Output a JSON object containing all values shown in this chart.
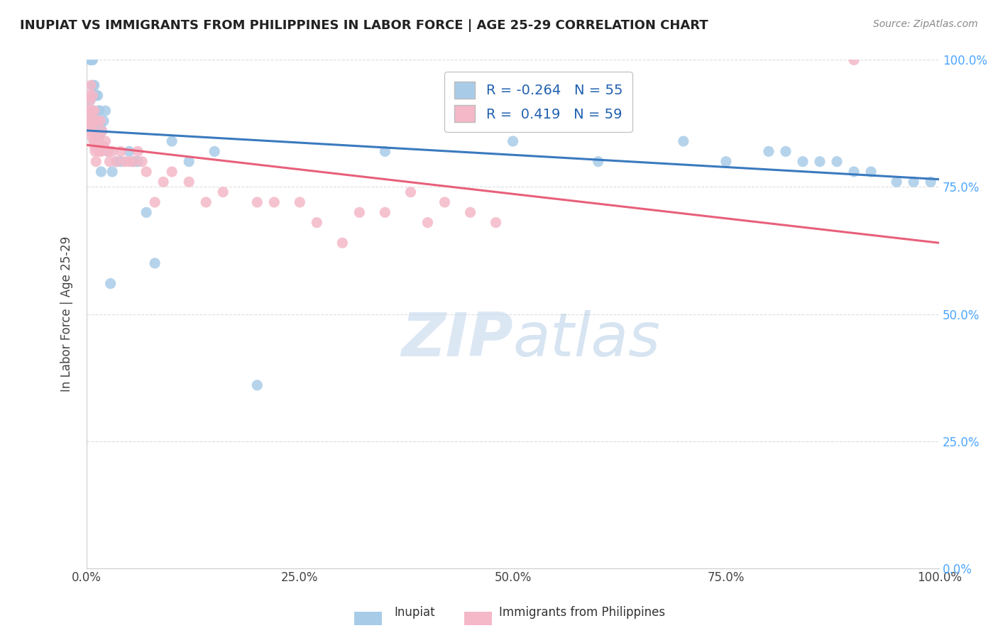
{
  "title": "INUPIAT VS IMMIGRANTS FROM PHILIPPINES IN LABOR FORCE | AGE 25-29 CORRELATION CHART",
  "source": "Source: ZipAtlas.com",
  "ylabel": "In Labor Force | Age 25-29",
  "xlim": [
    0.0,
    1.0
  ],
  "ylim": [
    0.0,
    1.0
  ],
  "xticks": [
    0.0,
    0.25,
    0.5,
    0.75,
    1.0
  ],
  "yticks": [
    0.0,
    0.25,
    0.5,
    0.75,
    1.0
  ],
  "xticklabels": [
    "0.0%",
    "25.0%",
    "50.0%",
    "75.0%",
    "100.0%"
  ],
  "right_yticklabels": [
    "0.0%",
    "25.0%",
    "50.0%",
    "75.0%",
    "100.0%"
  ],
  "legend_r_blue": "-0.264",
  "legend_n_blue": "55",
  "legend_r_pink": " 0.419",
  "legend_n_pink": "59",
  "blue_color": "#a8cce8",
  "pink_color": "#f4b8c8",
  "blue_line_color": "#3a7abf",
  "pink_line_color": "#e8607a",
  "watermark_zip": "ZIP",
  "watermark_atlas": "atlas",
  "inupiat_x": [
    0.003,
    0.004,
    0.005,
    0.005,
    0.005,
    0.006,
    0.006,
    0.007,
    0.007,
    0.008,
    0.008,
    0.009,
    0.01,
    0.01,
    0.011,
    0.012,
    0.013,
    0.013,
    0.014,
    0.015,
    0.015,
    0.016,
    0.017,
    0.018,
    0.02,
    0.022,
    0.025,
    0.028,
    0.03,
    0.035,
    0.04,
    0.05,
    0.055,
    0.06,
    0.07,
    0.08,
    0.1,
    0.12,
    0.15,
    0.2,
    0.35,
    0.5,
    0.6,
    0.7,
    0.75,
    0.8,
    0.82,
    0.84,
    0.86,
    0.88,
    0.9,
    0.92,
    0.95,
    0.97,
    0.99
  ],
  "inupiat_y": [
    0.88,
    0.92,
    1.0,
    1.0,
    1.0,
    1.0,
    1.0,
    1.0,
    0.95,
    0.9,
    0.88,
    0.95,
    0.88,
    0.93,
    0.93,
    0.86,
    0.93,
    0.87,
    0.9,
    0.9,
    0.85,
    0.87,
    0.78,
    0.86,
    0.88,
    0.9,
    0.82,
    0.56,
    0.78,
    0.8,
    0.8,
    0.82,
    0.8,
    0.8,
    0.7,
    0.6,
    0.84,
    0.8,
    0.82,
    0.36,
    0.82,
    0.84,
    0.8,
    0.84,
    0.8,
    0.82,
    0.82,
    0.8,
    0.8,
    0.8,
    0.78,
    0.78,
    0.76,
    0.76,
    0.76
  ],
  "philippines_x": [
    0.002,
    0.003,
    0.003,
    0.004,
    0.004,
    0.005,
    0.005,
    0.005,
    0.006,
    0.006,
    0.007,
    0.007,
    0.008,
    0.008,
    0.009,
    0.009,
    0.01,
    0.01,
    0.011,
    0.011,
    0.012,
    0.013,
    0.014,
    0.015,
    0.016,
    0.017,
    0.018,
    0.02,
    0.022,
    0.025,
    0.027,
    0.03,
    0.035,
    0.04,
    0.045,
    0.05,
    0.055,
    0.06,
    0.065,
    0.07,
    0.08,
    0.09,
    0.1,
    0.12,
    0.14,
    0.16,
    0.2,
    0.22,
    0.25,
    0.27,
    0.3,
    0.32,
    0.35,
    0.38,
    0.4,
    0.42,
    0.45,
    0.48,
    0.9
  ],
  "philippines_y": [
    0.9,
    0.93,
    0.88,
    0.92,
    0.87,
    0.95,
    0.88,
    0.86,
    0.9,
    0.85,
    0.93,
    0.87,
    0.88,
    0.84,
    0.9,
    0.83,
    0.88,
    0.82,
    0.85,
    0.8,
    0.88,
    0.83,
    0.85,
    0.82,
    0.88,
    0.82,
    0.86,
    0.83,
    0.84,
    0.82,
    0.8,
    0.82,
    0.8,
    0.82,
    0.8,
    0.8,
    0.8,
    0.82,
    0.8,
    0.78,
    0.72,
    0.76,
    0.78,
    0.76,
    0.72,
    0.74,
    0.72,
    0.72,
    0.72,
    0.68,
    0.64,
    0.7,
    0.7,
    0.74,
    0.68,
    0.72,
    0.7,
    0.68,
    1.0
  ]
}
